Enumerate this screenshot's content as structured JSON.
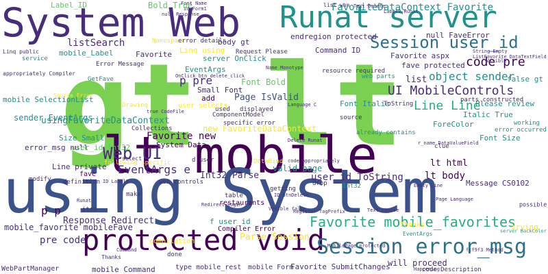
{
  "palette": {
    "purple": "#440154",
    "indigo": "#472d7b",
    "blue": "#3b528b",
    "steel": "#2c728e",
    "teal": "#21918c",
    "green": "#28ae80",
    "lime": "#5ec962",
    "chartreuse": "#7ad151",
    "yellow": "#fde725"
  },
  "words": [
    {
      "text": "gt lt",
      "color": "chartreuse"
    },
    {
      "text": "lt mobile",
      "color": "purple"
    },
    {
      "text": "using System",
      "color": "blue"
    },
    {
      "text": "System Web",
      "color": "indigo"
    },
    {
      "text": "Runat server",
      "color": "teal"
    },
    {
      "text": "protected void",
      "color": "purple"
    },
    {
      "text": "Session error_msg",
      "color": "steel"
    },
    {
      "text": "Session user_id",
      "color": "steel"
    },
    {
      "text": "Web UI",
      "color": "indigo"
    },
    {
      "text": "Favorite mobile_favorites",
      "color": "green"
    },
    {
      "text": "FavoriteDataContext Favorite",
      "color": "teal"
    },
    {
      "text": "UI MobileControls",
      "color": "indigo"
    },
    {
      "text": "object sender",
      "color": "teal"
    },
    {
      "text": "code pre",
      "color": "purple"
    },
    {
      "text": "Line Line",
      "color": "green"
    },
    {
      "text": "Label_ID",
      "color": "lime"
    },
    {
      "text": "Bold True",
      "color": "lime"
    },
    {
      "text": "listSearch",
      "color": "indigo"
    },
    {
      "text": "mobile_Label",
      "color": "teal"
    },
    {
      "text": "Favorite",
      "color": "indigo"
    },
    {
      "text": "Linq using",
      "color": "yellow"
    },
    {
      "text": "server OnClick",
      "color": "teal"
    },
    {
      "text": "p pre",
      "color": "indigo"
    },
    {
      "text": "Font Bold",
      "color": "lime"
    },
    {
      "text": "Small Font",
      "color": "indigo"
    },
    {
      "text": "Page IsValid",
      "color": "blue"
    },
    {
      "text": "Favorite new",
      "color": "purple"
    },
    {
      "text": "System Data",
      "color": "purple"
    },
    {
      "text": "EventArgs e",
      "color": "indigo"
    },
    {
      "text": "new FavoriteDataContext",
      "color": "yellow"
    },
    {
      "text": "valid page",
      "color": "teal"
    },
    {
      "text": "user_id ToString",
      "color": "indigo"
    },
    {
      "text": "Int32 Parse",
      "color": "indigo"
    },
    {
      "text": "lt body",
      "color": "purple"
    },
    {
      "text": "lt html",
      "color": "purple"
    },
    {
      "text": "Response Redirect",
      "color": "indigo"
    },
    {
      "text": "mobile_favorite mobileFave",
      "color": "indigo"
    },
    {
      "text": "pre code",
      "color": "indigo"
    },
    {
      "text": "Parse Session",
      "color": "yellow"
    },
    {
      "text": "Italic True",
      "color": "teal"
    },
    {
      "text": "Please review",
      "color": "teal"
    },
    {
      "text": "ForeColor",
      "color": "teal"
    },
    {
      "text": "fave protected",
      "color": "indigo"
    },
    {
      "text": "Favorite aspx",
      "color": "indigo"
    },
    {
      "text": "endregion protected",
      "color": "indigo"
    },
    {
      "text": "Command ID",
      "color": "indigo"
    },
    {
      "text": "Font Italic",
      "color": "teal"
    },
    {
      "text": "Font Size",
      "color": "teal"
    },
    {
      "text": "null FaveError",
      "color": "indigo"
    },
    {
      "text": "EventArgs",
      "color": "teal"
    },
    {
      "text": "sender EventArgs",
      "color": "teal"
    },
    {
      "text": "error_msg null",
      "color": "indigo"
    },
    {
      "text": "mobile SelectionList",
      "color": "teal"
    },
    {
      "text": "usingFavoriteDataContext",
      "color": "teal"
    },
    {
      "text": "Size Small",
      "color": "teal"
    },
    {
      "text": "user_id Int32",
      "color": "lime"
    },
    {
      "text": "Line private",
      "color": "indigo"
    },
    {
      "text": "p p",
      "color": "purple"
    },
    {
      "text": "will proceed",
      "color": "indigo"
    },
    {
      "text": "Message CS0102",
      "color": "indigo"
    },
    {
      "text": "f user_id",
      "color": "teal"
    },
    {
      "text": "Compiler Error",
      "color": "purple"
    },
    {
      "text": "Favorite SubmitChanges",
      "color": "indigo"
    },
    {
      "text": "type mobile_rest",
      "color": "indigo"
    },
    {
      "text": "mobile Form",
      "color": "indigo"
    },
    {
      "text": "mobile Command",
      "color": "indigo"
    },
    {
      "text": "WebPartManager",
      "color": "indigo"
    },
    {
      "text": "code Description",
      "color": "indigo"
    },
    {
      "text": "body gt",
      "color": "indigo"
    },
    {
      "text": "Namespace",
      "color": "yellow"
    },
    {
      "text": "GetFave",
      "color": "teal"
    },
    {
      "text": "add",
      "color": "purple"
    },
    {
      "text": "user selects",
      "color": "yellow"
    },
    {
      "text": "ComponentModel",
      "color": "indigo"
    },
    {
      "text": "specific error",
      "color": "indigo"
    },
    {
      "text": "displayed",
      "color": "indigo"
    },
    {
      "text": "used",
      "color": "indigo"
    },
    {
      "text": "Drawing",
      "color": "yellow"
    },
    {
      "text": "Collections",
      "color": "indigo"
    },
    {
      "text": "following specific",
      "color": "yellow"
    },
    {
      "text": "web controls",
      "color": "indigo"
    },
    {
      "text": "definition",
      "color": "indigo"
    },
    {
      "text": "fave",
      "color": "purple"
    },
    {
      "text": "modify",
      "color": "indigo"
    },
    {
      "text": "make",
      "color": "indigo"
    },
    {
      "text": "item",
      "color": "indigo"
    },
    {
      "text": "table",
      "color": "indigo"
    },
    {
      "text": "restaurants",
      "color": "purple"
    },
    {
      "text": "getting",
      "color": "indigo"
    },
    {
      "text": "drop",
      "color": "indigo"
    },
    {
      "text": "DataBind",
      "color": "yellow"
    },
    {
      "text": "source",
      "color": "indigo"
    },
    {
      "text": "error occurred",
      "color": "teal"
    },
    {
      "text": "working",
      "color": "teal"
    },
    {
      "text": "parts constructed",
      "color": "indigo"
    },
    {
      "text": "resource required",
      "color": "indigo"
    },
    {
      "text": "already contains",
      "color": "teal"
    },
    {
      "text": "ToString",
      "color": "indigo"
    },
    {
      "text": "web parts",
      "color": "teal"
    },
    {
      "text": "false gt",
      "color": "teal"
    },
    {
      "text": "Request Please",
      "color": "indigo"
    },
    {
      "text": "error details",
      "color": "indigo"
    },
    {
      "text": "list whn",
      "color": "indigo"
    },
    {
      "text": "Error Message",
      "color": "indigo"
    },
    {
      "text": "Thanks",
      "color": "yellow"
    },
    {
      "text": "trying",
      "color": "yellow"
    },
    {
      "text": "Int32",
      "color": "teal"
    },
    {
      "text": "list",
      "color": "indigo"
    },
    {
      "text": "clue",
      "color": "indigo"
    },
    {
      "text": "service",
      "color": "teal"
    },
    {
      "text": "Linq public",
      "color": "indigo"
    },
    {
      "text": "appropriately Compiler",
      "color": "indigo"
    },
    {
      "text": "done",
      "color": "indigo"
    },
    {
      "text": "compilation",
      "color": "yellow"
    },
    {
      "text": "possible",
      "color": "indigo"
    },
    {
      "text": "d user",
      "color": "indigo"
    },
    {
      "text": "select",
      "color": "indigo"
    },
    {
      "text": "Redirect Login",
      "color": "indigo"
    },
    {
      "text": "Visible false",
      "color": "indigo"
    },
    {
      "text": "Text Choose",
      "color": "indigo"
    },
    {
      "text": "server BackColor",
      "color": "teal"
    },
    {
      "text": "fcf9f3 Method",
      "color": "indigo"
    },
    {
      "text": "Page Language",
      "color": "indigo"
    },
    {
      "text": "Empty Line",
      "color": "indigo"
    },
    {
      "text": "Register TagPrefix",
      "color": "indigo"
    },
    {
      "text": "ID btnDelete",
      "color": "indigo"
    },
    {
      "text": "MobilePage protected",
      "color": "indigo"
    },
    {
      "text": "OnClick btn_delete_click",
      "color": "indigo"
    },
    {
      "text": "Label2 Runat",
      "color": "indigo"
    },
    {
      "text": "r_name DataValueField",
      "color": "indigo"
    },
    {
      "text": "true CodeFile",
      "color": "indigo"
    },
    {
      "text": "Name Monotype",
      "color": "indigo"
    },
    {
      "text": "ListFavorite DataTextField",
      "color": "indigo"
    },
    {
      "text": "String Empty",
      "color": "indigo"
    },
    {
      "text": "Delete Runat",
      "color": "indigo"
    },
    {
      "text": "Text Delete",
      "color": "indigo"
    },
    {
      "text": "null Response",
      "color": "indigo"
    },
    {
      "text": "id Form1",
      "color": "indigo"
    },
    {
      "text": "Font Name",
      "color": "indigo"
    },
    {
      "text": "code appropriately",
      "color": "indigo"
    },
    {
      "text": "Happening",
      "color": "yellow"
    },
    {
      "text": "Source Error",
      "color": "indigo"
    },
    {
      "text": "Command",
      "color": "indigo"
    },
    {
      "text": "Thanks",
      "color": "teal"
    },
    {
      "text": "EventArgs",
      "color": "indigo"
    },
    {
      "text": "ID Label2",
      "color": "indigo"
    },
    {
      "text": "Visible",
      "color": "indigo"
    },
    {
      "text": "Runat",
      "color": "indigo"
    },
    {
      "text": "Language C",
      "color": "indigo"
    }
  ]
}
